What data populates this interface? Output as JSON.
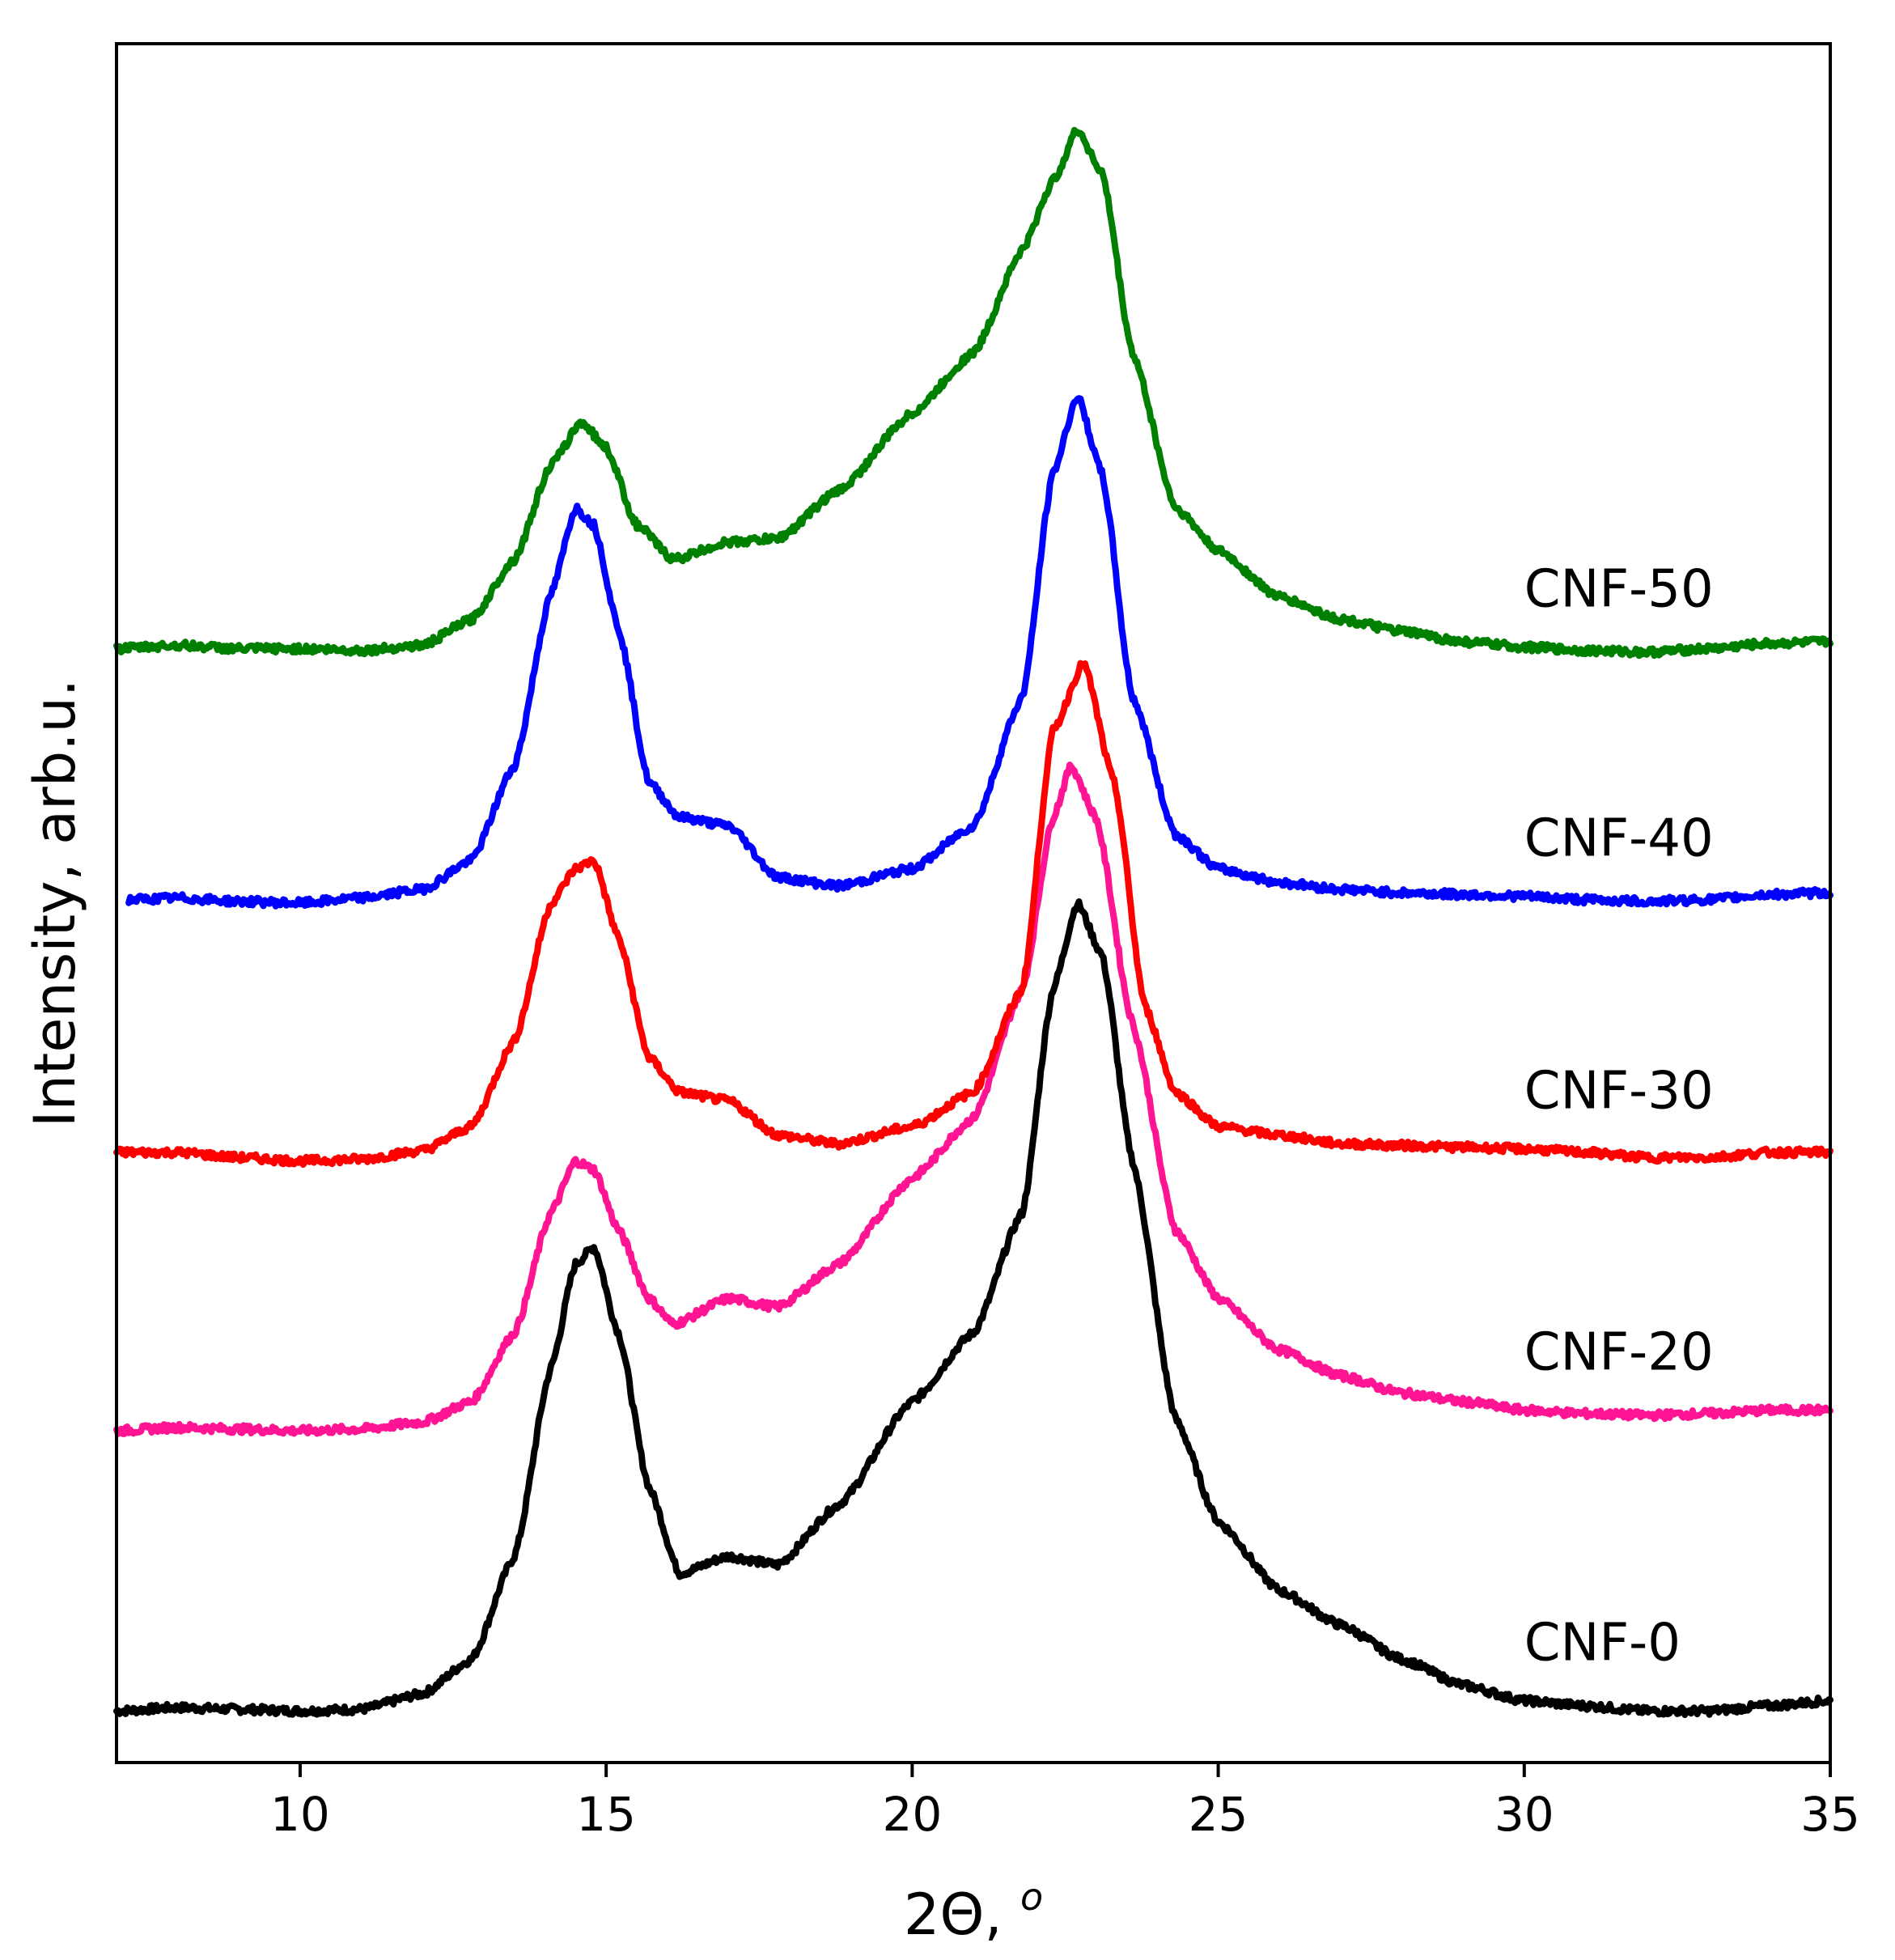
{
  "chart_data": {
    "type": "line",
    "title": "",
    "xlabel": "2Θ, ",
    "xlabel_superscript": "o",
    "ylabel": "Intensity, arb.u.",
    "xlim": [
      7,
      35
    ],
    "ylim": [
      0,
      100
    ],
    "x_ticks": [
      "10",
      "15",
      "20",
      "25",
      "30",
      "35"
    ],
    "grid": false,
    "legend": "inline labels at right",
    "series": [
      {
        "name": "CNF-0",
        "color": "#000000",
        "points": [
          [
            7,
            3
          ],
          [
            8,
            3.2
          ],
          [
            9,
            3.1
          ],
          [
            10,
            3
          ],
          [
            11,
            3.1
          ],
          [
            12,
            4
          ],
          [
            12.8,
            6
          ],
          [
            13.5,
            12
          ],
          [
            14.1,
            23
          ],
          [
            14.5,
            29
          ],
          [
            14.8,
            30
          ],
          [
            15.2,
            25
          ],
          [
            15.7,
            16
          ],
          [
            16.2,
            11
          ],
          [
            17,
            12
          ],
          [
            17.8,
            11.5
          ],
          [
            18.8,
            15
          ],
          [
            20,
            21
          ],
          [
            21,
            25
          ],
          [
            21.8,
            32
          ],
          [
            22.3,
            45
          ],
          [
            22.7,
            50
          ],
          [
            23.1,
            47
          ],
          [
            23.6,
            35
          ],
          [
            24.3,
            20
          ],
          [
            25,
            14
          ],
          [
            26,
            10
          ],
          [
            27,
            8
          ],
          [
            28,
            6
          ],
          [
            29,
            4.5
          ],
          [
            30,
            3.6
          ],
          [
            31,
            3.3
          ],
          [
            32,
            3
          ],
          [
            33,
            3
          ],
          [
            34,
            3.3
          ],
          [
            35,
            3.6
          ]
        ]
      },
      {
        "name": "CNF-20",
        "color": "#ff1493",
        "points": [
          [
            7,
            19.3
          ],
          [
            8,
            19.5
          ],
          [
            9,
            19.4
          ],
          [
            10,
            19.3
          ],
          [
            11,
            19.4
          ],
          [
            12,
            19.8
          ],
          [
            12.8,
            21
          ],
          [
            13.5,
            25
          ],
          [
            14.1,
            32
          ],
          [
            14.5,
            35
          ],
          [
            14.8,
            34.5
          ],
          [
            15.2,
            31
          ],
          [
            15.7,
            27
          ],
          [
            16.1,
            25.5
          ],
          [
            17,
            27
          ],
          [
            17.8,
            26.5
          ],
          [
            18.8,
            29
          ],
          [
            20,
            34
          ],
          [
            21,
            37.5
          ],
          [
            21.8,
            45
          ],
          [
            22.3,
            55
          ],
          [
            22.6,
            58
          ],
          [
            23,
            55
          ],
          [
            23.6,
            43
          ],
          [
            24.3,
            31
          ],
          [
            25,
            27
          ],
          [
            26,
            24
          ],
          [
            27,
            22.5
          ],
          [
            28,
            21.5
          ],
          [
            29,
            21
          ],
          [
            30,
            20.5
          ],
          [
            31,
            20.3
          ],
          [
            32,
            20.2
          ],
          [
            33,
            20.3
          ],
          [
            34,
            20.5
          ],
          [
            35,
            20.5
          ]
        ]
      },
      {
        "name": "CNF-30",
        "color": "#ff0000",
        "points": [
          [
            7,
            35.5
          ],
          [
            8,
            35.5
          ],
          [
            9,
            35.2
          ],
          [
            10,
            35
          ],
          [
            11,
            35.1
          ],
          [
            12,
            35.6
          ],
          [
            12.8,
            37
          ],
          [
            13.5,
            42
          ],
          [
            14.1,
            50
          ],
          [
            14.5,
            52
          ],
          [
            14.8,
            52.5
          ],
          [
            15.2,
            48
          ],
          [
            15.7,
            41
          ],
          [
            16.2,
            39
          ],
          [
            17,
            38.5
          ],
          [
            17.8,
            36.5
          ],
          [
            18.8,
            36
          ],
          [
            20,
            37
          ],
          [
            21,
            39
          ],
          [
            21.8,
            45
          ],
          [
            22.3,
            60
          ],
          [
            22.8,
            64
          ],
          [
            23.3,
            57
          ],
          [
            23.8,
            44
          ],
          [
            24.3,
            39
          ],
          [
            25,
            37
          ],
          [
            26,
            36.5
          ],
          [
            27,
            36
          ],
          [
            28,
            35.9
          ],
          [
            29,
            35.8
          ],
          [
            30,
            35.7
          ],
          [
            31,
            35.5
          ],
          [
            32,
            35.2
          ],
          [
            33,
            35.2
          ],
          [
            34,
            35.5
          ],
          [
            35,
            35.5
          ]
        ]
      },
      {
        "name": "CNF-40",
        "color": "#0000ff",
        "points": [
          [
            7.2,
            50.2
          ],
          [
            8,
            50.3
          ],
          [
            9,
            50.1
          ],
          [
            10,
            50
          ],
          [
            11,
            50.3
          ],
          [
            12,
            50.8
          ],
          [
            12.8,
            52.5
          ],
          [
            13.5,
            58
          ],
          [
            14.1,
            68
          ],
          [
            14.5,
            73
          ],
          [
            14.8,
            72
          ],
          [
            15.2,
            66
          ],
          [
            15.7,
            57
          ],
          [
            16.2,
            55
          ],
          [
            17,
            54.5
          ],
          [
            17.8,
            51.5
          ],
          [
            18.8,
            51
          ],
          [
            20,
            52
          ],
          [
            21,
            54.5
          ],
          [
            21.8,
            62
          ],
          [
            22.3,
            75
          ],
          [
            22.7,
            79.5
          ],
          [
            23.1,
            75
          ],
          [
            23.6,
            62
          ],
          [
            24.3,
            54
          ],
          [
            25,
            52
          ],
          [
            26,
            51.2
          ],
          [
            27,
            50.8
          ],
          [
            28,
            50.6
          ],
          [
            29,
            50.5
          ],
          [
            30,
            50.4
          ],
          [
            31,
            50.2
          ],
          [
            32,
            50.1
          ],
          [
            33,
            50.2
          ],
          [
            34,
            50.5
          ],
          [
            35,
            50.6
          ]
        ]
      },
      {
        "name": "CNF-50",
        "color": "#008000",
        "points": [
          [
            7,
            64.8
          ],
          [
            8,
            65
          ],
          [
            9,
            64.8
          ],
          [
            10,
            64.8
          ],
          [
            11,
            64.7
          ],
          [
            12,
            65
          ],
          [
            12.8,
            66.5
          ],
          [
            13.5,
            70
          ],
          [
            14.1,
            75.5
          ],
          [
            14.6,
            78
          ],
          [
            15,
            76.5
          ],
          [
            15.5,
            72
          ],
          [
            16.1,
            70
          ],
          [
            17,
            71
          ],
          [
            17.8,
            71.2
          ],
          [
            18.8,
            74
          ],
          [
            20,
            78.5
          ],
          [
            21,
            82
          ],
          [
            21.8,
            88
          ],
          [
            22.3,
            92
          ],
          [
            22.7,
            95
          ],
          [
            23.1,
            92.5
          ],
          [
            23.6,
            82
          ],
          [
            24.3,
            73
          ],
          [
            25,
            70.5
          ],
          [
            26,
            67.8
          ],
          [
            27,
            66.5
          ],
          [
            28,
            65.8
          ],
          [
            29,
            65.2
          ],
          [
            30,
            64.9
          ],
          [
            31,
            64.7
          ],
          [
            32,
            64.6
          ],
          [
            33,
            64.8
          ],
          [
            34,
            65.1
          ],
          [
            35,
            65.2
          ]
        ]
      }
    ]
  }
}
